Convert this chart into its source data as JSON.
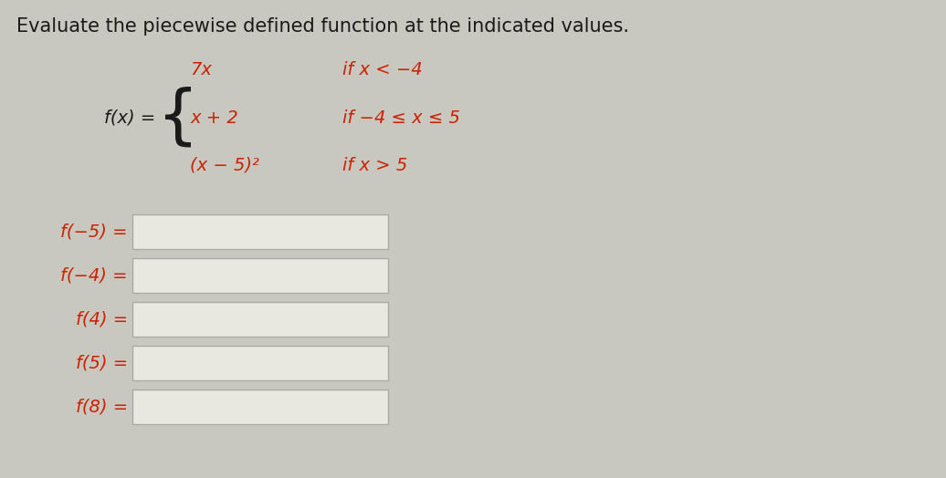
{
  "title": "Evaluate the piecewise defined function at the indicated values.",
  "title_color": "#1a1a1a",
  "title_fontsize": 15,
  "bg_color": "#c8c8c0",
  "fx_label": "f(x) =",
  "pieces": [
    {
      "expr": "7x",
      "condition": "if x < −4"
    },
    {
      "expr": "x + 2",
      "condition": "if −4 ≤ x ≤ 5"
    },
    {
      "expr": "(x − 5)²",
      "condition": "if x > 5"
    }
  ],
  "eval_labels": [
    "f(−5) =",
    "f(−4) =",
    "f(4) =",
    "f(5) =",
    "f(8) ="
  ],
  "text_color_red": "#cc2200",
  "text_color_black": "#1a1a1a",
  "box_color": "#e8e8e0",
  "box_edge_color": "#aaaaaa"
}
